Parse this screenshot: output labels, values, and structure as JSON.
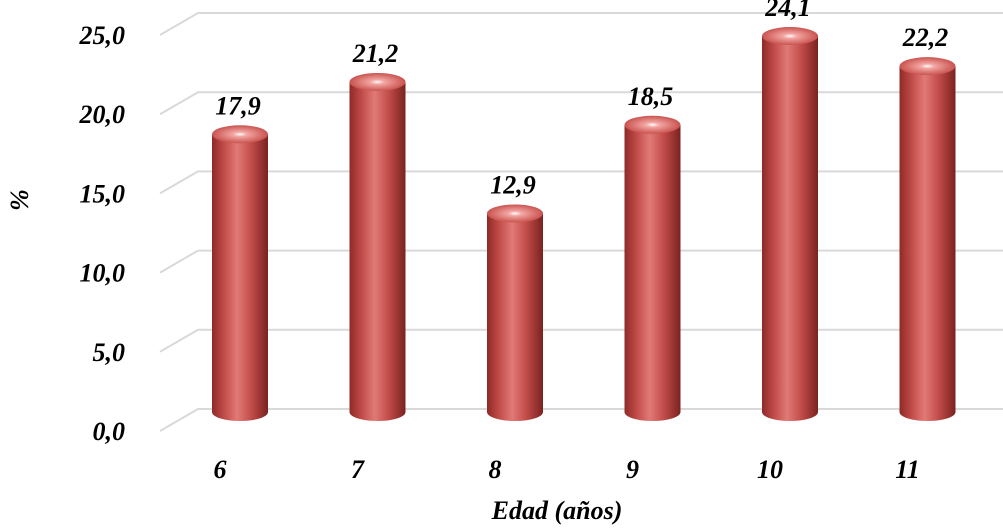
{
  "chart_data": {
    "type": "bar",
    "style": "3d-cylinder",
    "categories": [
      "6",
      "7",
      "8",
      "9",
      "10",
      "11"
    ],
    "values": [
      17.9,
      21.2,
      12.9,
      18.5,
      24.1,
      22.2
    ],
    "value_labels": [
      "17,9",
      "21,2",
      "12,9",
      "18,5",
      "24,1",
      "22,2"
    ],
    "xlabel": "Edad (años)",
    "ylabel": "%",
    "ylim": [
      0,
      25
    ],
    "yticks": [
      "0,0",
      "5,0",
      "10,0",
      "15,0",
      "20,0",
      "25,0"
    ],
    "grid": true,
    "legend": "none",
    "bar_color": "#c0504d"
  }
}
